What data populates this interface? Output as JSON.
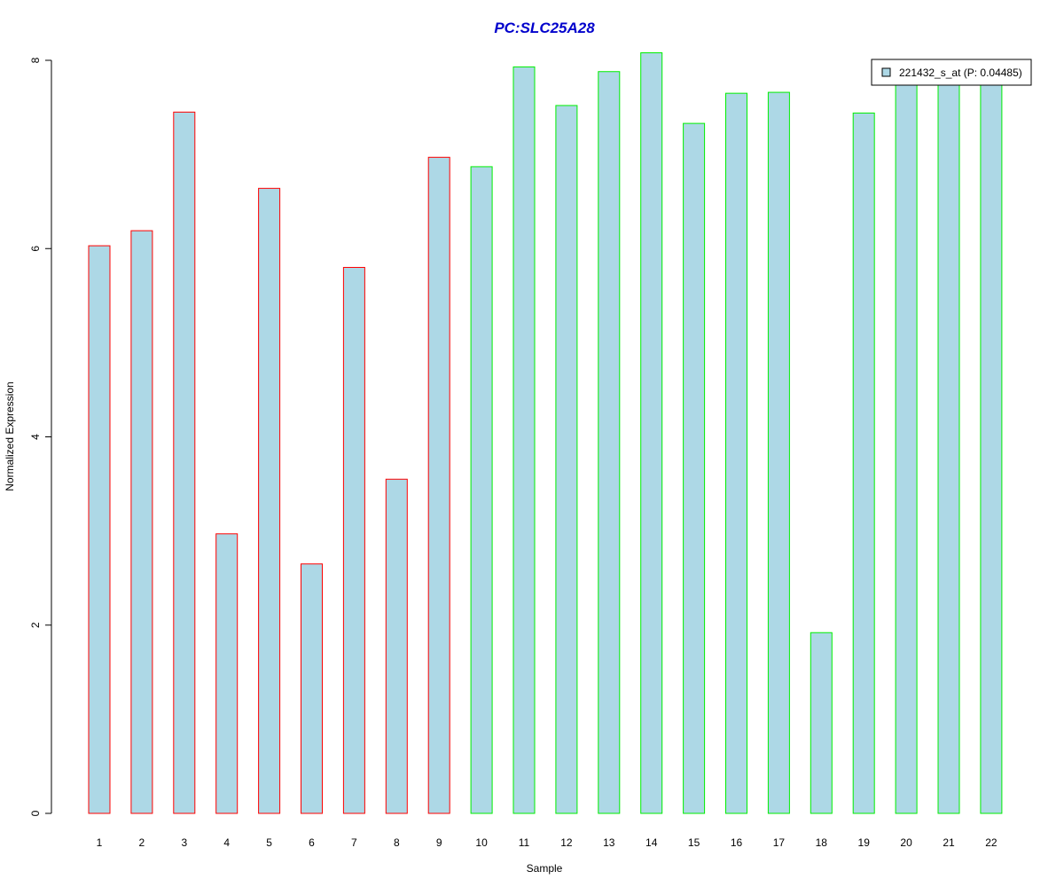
{
  "chart_data": {
    "type": "bar",
    "title": "PC:SLC25A28",
    "xlabel": "Sample",
    "ylabel": "Normalized Expression",
    "ylim": [
      0,
      8
    ],
    "yticks": [
      "0",
      "2",
      "4",
      "6",
      "8"
    ],
    "grid": false,
    "legend_position": "top-right",
    "categories": [
      "1",
      "2",
      "3",
      "4",
      "5",
      "6",
      "7",
      "8",
      "9",
      "10",
      "11",
      "12",
      "13",
      "14",
      "15",
      "16",
      "17",
      "18",
      "19",
      "20",
      "21",
      "22"
    ],
    "series": [
      {
        "name": "221432_s_at (P: 0.04485)",
        "values": [
          6.03,
          6.19,
          7.45,
          2.97,
          6.64,
          2.65,
          5.8,
          3.55,
          6.97,
          6.87,
          7.93,
          7.52,
          7.88,
          8.08,
          7.33,
          7.65,
          7.66,
          1.92,
          7.44,
          7.76,
          7.76,
          7.76
        ],
        "groups": [
          "a",
          "a",
          "a",
          "a",
          "a",
          "a",
          "a",
          "a",
          "a",
          "b",
          "b",
          "b",
          "b",
          "b",
          "b",
          "b",
          "b",
          "b",
          "b",
          "b",
          "b",
          "b"
        ]
      }
    ],
    "colors": {
      "title": "#0000cc",
      "bar_fill": "#add8e6",
      "group_a_border": "#ff0000",
      "group_b_border": "#00ee00",
      "axis": "#000000"
    }
  }
}
